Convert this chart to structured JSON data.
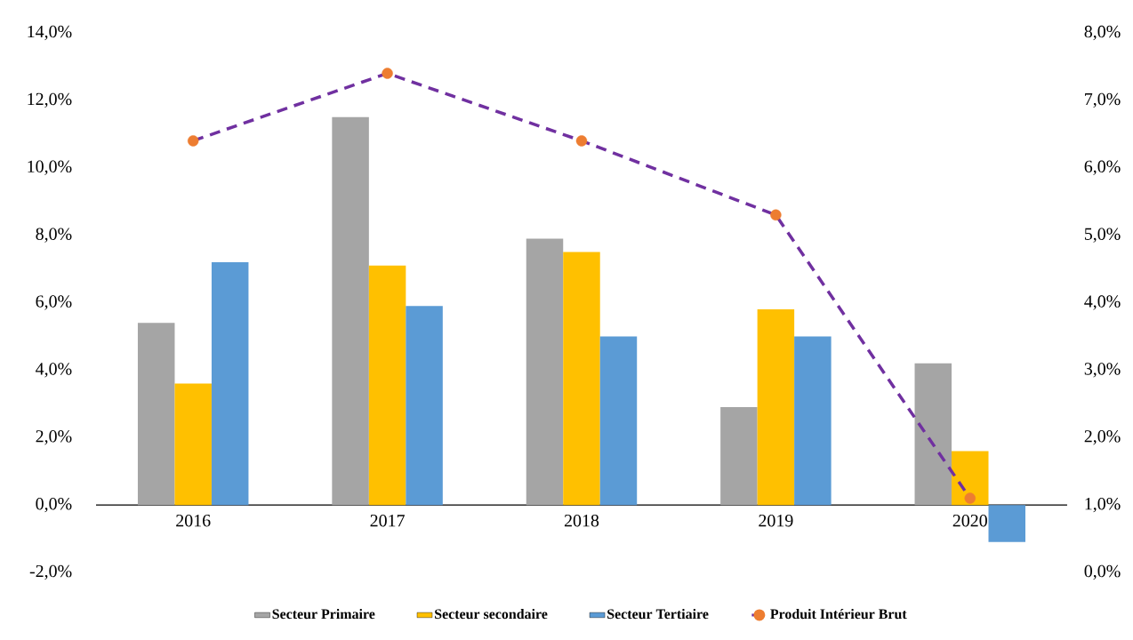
{
  "chart_data": {
    "type": "bar",
    "categories": [
      "2016",
      "2017",
      "2018",
      "2019",
      "2020"
    ],
    "series": [
      {
        "name": "Secteur Primaire",
        "color": "#a5a5a5",
        "values": [
          5.4,
          11.5,
          7.9,
          2.9,
          4.2
        ]
      },
      {
        "name": "Secteur secondaire",
        "color": "#ffc000",
        "values": [
          3.6,
          7.1,
          7.5,
          5.8,
          1.6
        ]
      },
      {
        "name": "Secteur Tertiaire",
        "color": "#5b9bd5",
        "values": [
          7.2,
          5.9,
          5.0,
          5.0,
          -1.1
        ]
      },
      {
        "name": "Produit Intérieur Brut",
        "type": "line",
        "axis": "y2",
        "color": "#7030a0",
        "colors": [
          "#ed7d31",
          "#ed7d31",
          "#ed7d31",
          "#ed7d31",
          "#ed7d31"
        ],
        "marker": "circle",
        "line_style": "dashed",
        "values": [
          6.4,
          7.4,
          6.4,
          5.3,
          1.1
        ]
      }
    ],
    "ylim": [
      -2,
      14
    ],
    "yticks": [
      {
        "value": -2,
        "label": "-2,0%"
      },
      {
        "value": 0,
        "label": "0,0%"
      },
      {
        "value": 2,
        "label": "2,0%"
      },
      {
        "value": 4,
        "label": "4,0%"
      },
      {
        "value": 6,
        "label": "6,0%"
      },
      {
        "value": 8,
        "label": "8,0%"
      },
      {
        "value": 10,
        "label": "10,0%"
      },
      {
        "value": 12,
        "label": "12,0%"
      },
      {
        "value": 14,
        "label": "14,0%"
      }
    ],
    "y2lim": [
      0,
      8
    ],
    "y2ticks": [
      {
        "value": 0,
        "label": "0,0%"
      },
      {
        "value": 1,
        "label": "1,0%"
      },
      {
        "value": 2,
        "label": "2,0%"
      },
      {
        "value": 3,
        "label": "3,0%"
      },
      {
        "value": 4,
        "label": "4,0%"
      },
      {
        "value": 5,
        "label": "5,0%"
      },
      {
        "value": 6,
        "label": "6,0%"
      },
      {
        "value": 7,
        "label": "7,0%"
      },
      {
        "value": 8,
        "label": "8,0%"
      }
    ],
    "legend": "bottom",
    "grid": false
  }
}
